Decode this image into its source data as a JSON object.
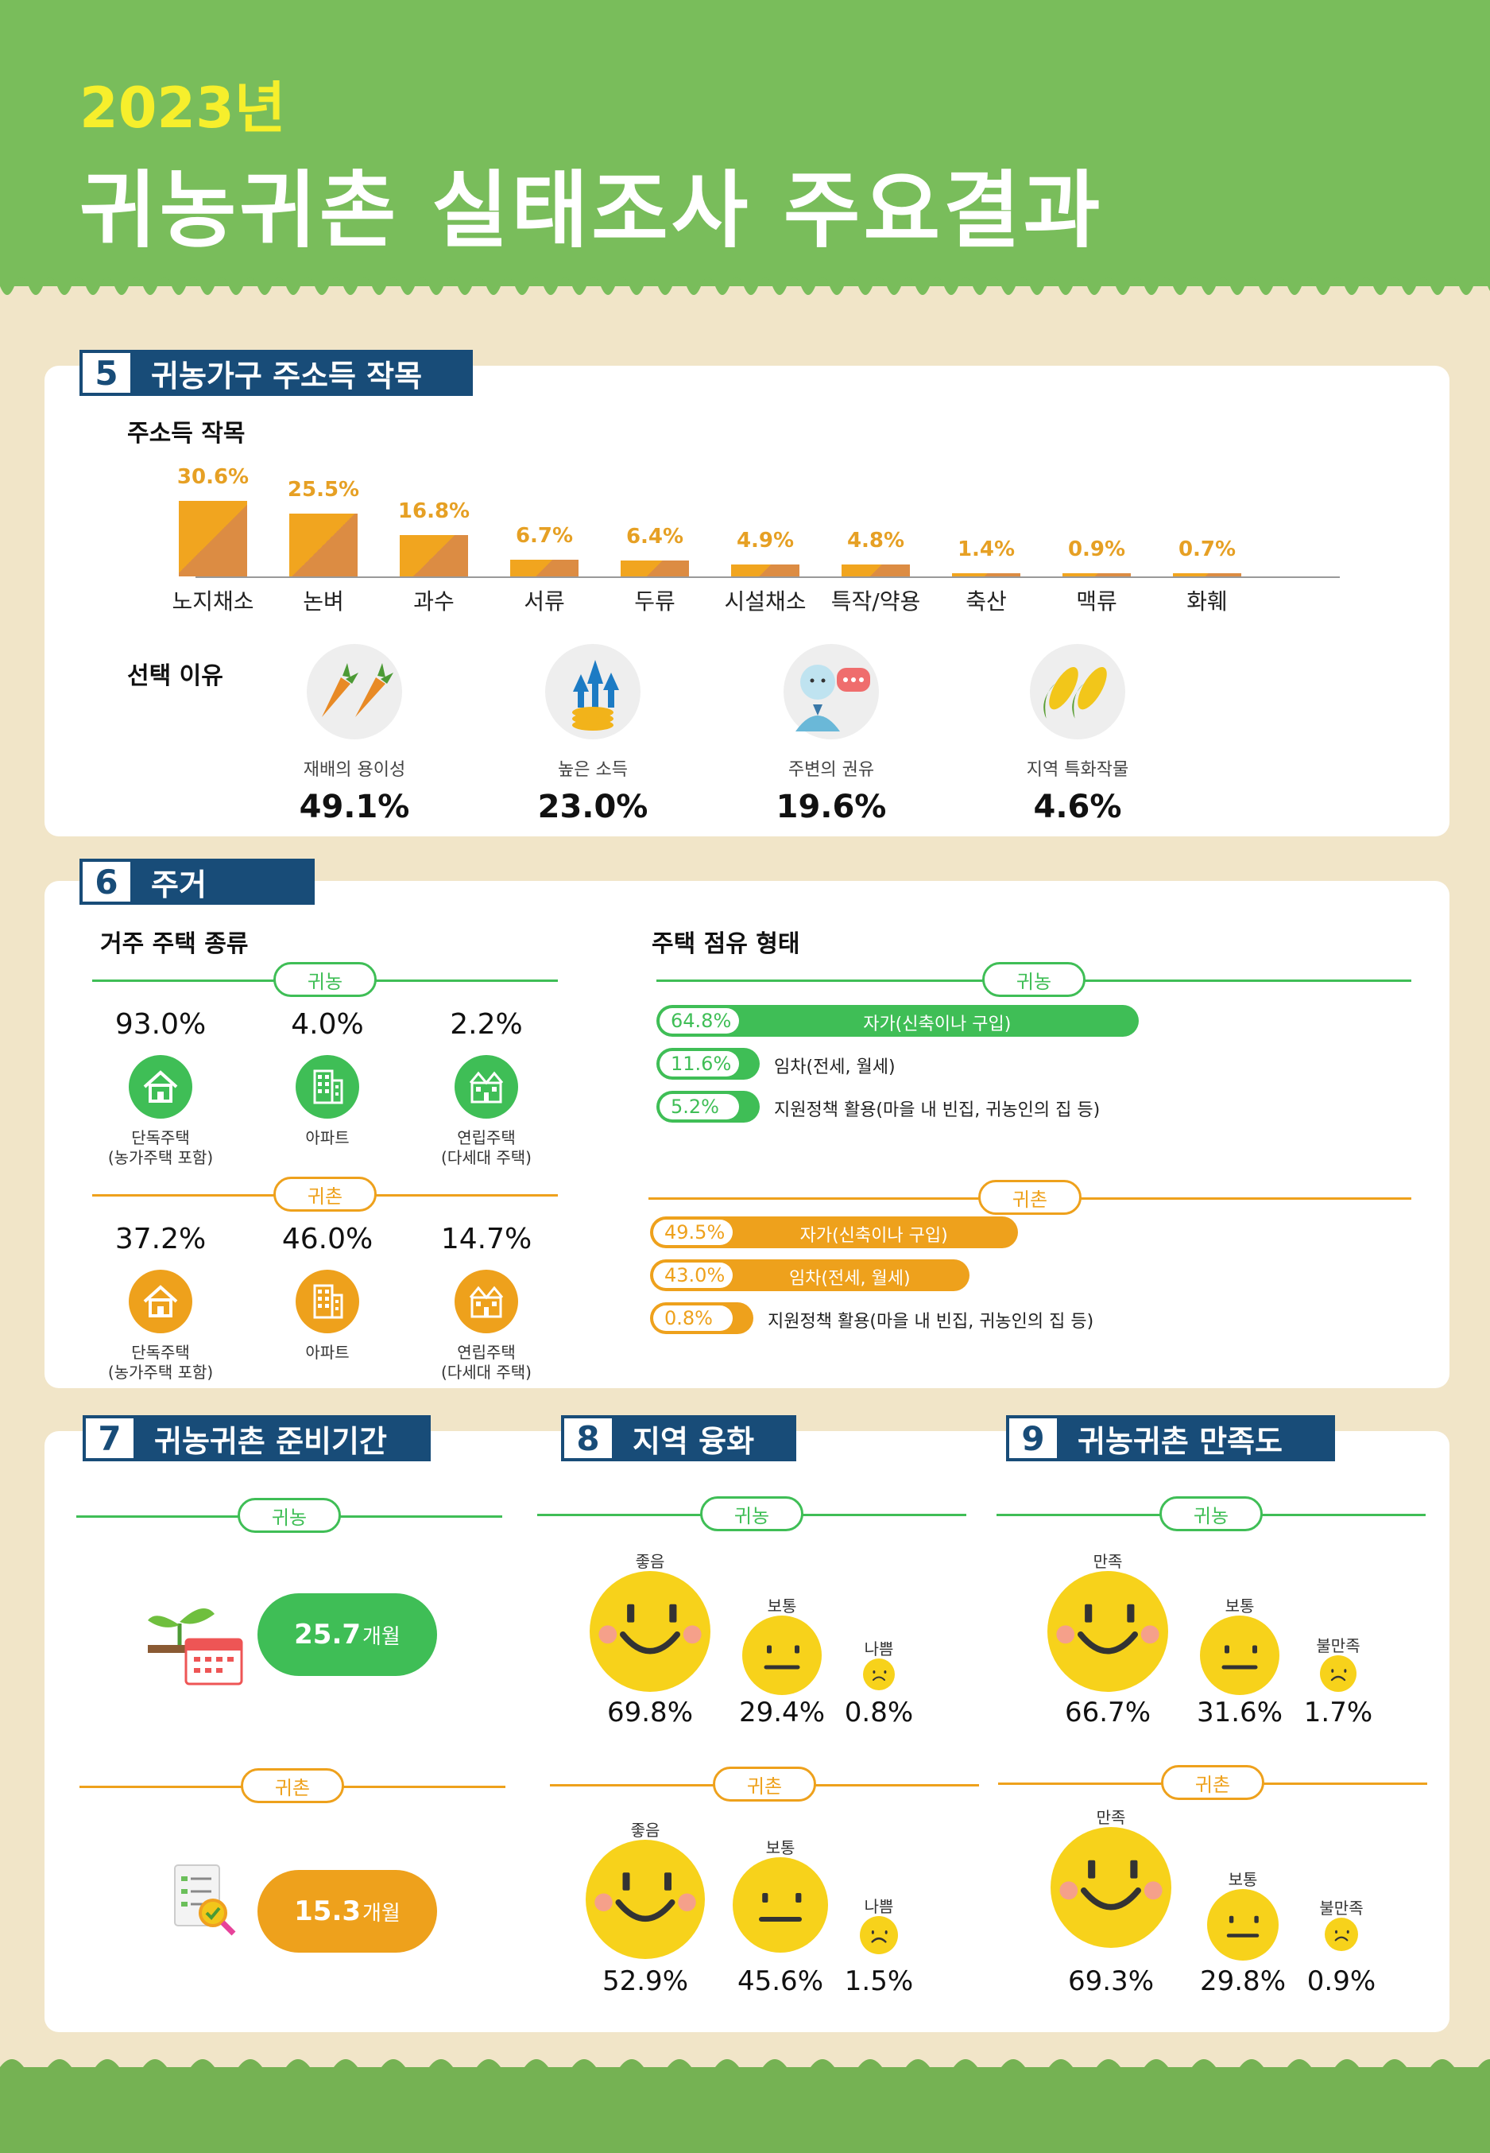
{
  "header": {
    "year": "2023년",
    "title": "귀농귀촌 실태조사 주요결과"
  },
  "sec5": {
    "num": "5",
    "title": "귀농가구 주소득 작목",
    "subtitle": "주소득 작목",
    "bars": [
      {
        "label": "노지채소",
        "value": "30.6%",
        "v": 30.6
      },
      {
        "label": "논벼",
        "value": "25.5%",
        "v": 25.5
      },
      {
        "label": "과수",
        "value": "16.8%",
        "v": 16.8
      },
      {
        "label": "서류",
        "value": "6.7%",
        "v": 6.7
      },
      {
        "label": "두류",
        "value": "6.4%",
        "v": 6.4
      },
      {
        "label": "시설채소",
        "value": "4.9%",
        "v": 4.9
      },
      {
        "label": "특작/약용",
        "value": "4.8%",
        "v": 4.8
      },
      {
        "label": "축산",
        "value": "1.4%",
        "v": 1.4
      },
      {
        "label": "맥류",
        "value": "0.9%",
        "v": 0.9
      },
      {
        "label": "화훼",
        "value": "0.7%",
        "v": 0.7
      }
    ],
    "reason_title": "선택 이유",
    "reasons": [
      {
        "label": "재배의 용이성",
        "value": "49.1%",
        "icon": "carrot-icon"
      },
      {
        "label": "높은 소득",
        "value": "23.0%",
        "icon": "income-icon"
      },
      {
        "label": "주변의 권유",
        "value": "19.6%",
        "icon": "advice-icon"
      },
      {
        "label": "지역 특화작물",
        "value": "4.6%",
        "icon": "corn-icon"
      }
    ]
  },
  "sec6": {
    "num": "6",
    "title": "주거",
    "housing_title": "거주 주택 종류",
    "tenure_title": "주택 점유 형태",
    "farm_label": "귀농",
    "rural_label": "귀촌",
    "farm_housing": [
      {
        "value": "93.0%",
        "label1": "단독주택",
        "label2": "(농가주택 포함)",
        "icon": "house-icon"
      },
      {
        "value": "4.0%",
        "label1": "아파트",
        "label2": "",
        "icon": "apartment-icon"
      },
      {
        "value": "2.2%",
        "label1": "연립주택",
        "label2": "(다세대 주택)",
        "icon": "rowhouse-icon"
      }
    ],
    "rural_housing": [
      {
        "value": "37.2%",
        "label1": "단독주택",
        "label2": "(농가주택 포함)",
        "icon": "house-icon"
      },
      {
        "value": "46.0%",
        "label1": "아파트",
        "label2": "",
        "icon": "apartment-icon"
      },
      {
        "value": "14.7%",
        "label1": "연립주택",
        "label2": "(다세대 주택)",
        "icon": "rowhouse-icon"
      }
    ],
    "farm_tenure": [
      {
        "value": "64.8%",
        "v": 64.8,
        "label": "자가(신축이나 구입)"
      },
      {
        "value": "11.6%",
        "v": 11.6,
        "label": "임차(전세, 월세)"
      },
      {
        "value": "5.2%",
        "v": 5.2,
        "label": "지원정책 활용(마을 내 빈집, 귀농인의 집 등)"
      }
    ],
    "rural_tenure": [
      {
        "value": "49.5%",
        "v": 49.5,
        "label": "자가(신축이나 구입)"
      },
      {
        "value": "43.0%",
        "v": 43.0,
        "label": "임차(전세, 월세)"
      },
      {
        "value": "0.8%",
        "v": 0.8,
        "label": "지원정책 활용(마을 내 빈집, 귀농인의 집 등)"
      }
    ]
  },
  "sec7": {
    "num": "7",
    "title": "귀농귀촌 준비기간",
    "farm_label": "귀농",
    "farm_value": "25.7",
    "farm_unit": "개월",
    "rural_label": "귀촌",
    "rural_value": "15.3",
    "rural_unit": "개월"
  },
  "sec8": {
    "num": "8",
    "title": "지역 융화",
    "farm_label": "귀농",
    "rural_label": "귀촌",
    "farm": [
      {
        "label": "좋음",
        "value": "69.8%",
        "mood": "good"
      },
      {
        "label": "보통",
        "value": "29.4%",
        "mood": "neutral"
      },
      {
        "label": "나쁨",
        "value": "0.8%",
        "mood": "bad"
      }
    ],
    "rural": [
      {
        "label": "좋음",
        "value": "52.9%",
        "mood": "good"
      },
      {
        "label": "보통",
        "value": "45.6%",
        "mood": "neutral"
      },
      {
        "label": "나쁨",
        "value": "1.5%",
        "mood": "bad"
      }
    ]
  },
  "sec9": {
    "num": "9",
    "title": "귀농귀촌 만족도",
    "farm_label": "귀농",
    "rural_label": "귀촌",
    "farm": [
      {
        "label": "만족",
        "value": "66.7%",
        "mood": "good"
      },
      {
        "label": "보통",
        "value": "31.6%",
        "mood": "neutral"
      },
      {
        "label": "불만족",
        "value": "1.7%",
        "mood": "bad"
      }
    ],
    "rural": [
      {
        "label": "만족",
        "value": "69.3%",
        "mood": "good"
      },
      {
        "label": "보통",
        "value": "29.8%",
        "mood": "neutral"
      },
      {
        "label": "불만족",
        "value": "0.9%",
        "mood": "bad"
      }
    ]
  },
  "colors": {
    "green": "#3fbe56",
    "orange": "#eea11c",
    "navy": "#184c78",
    "bar": "#f1a51f",
    "face": "#f7d21b"
  }
}
